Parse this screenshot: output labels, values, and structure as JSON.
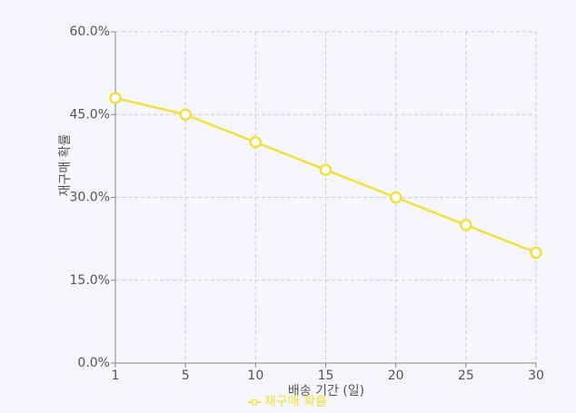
{
  "chart_data": {
    "type": "line",
    "x_label": "배송 기간 (일)",
    "y_label": "재구매 확률",
    "categories": [
      "1",
      "5",
      "10",
      "15",
      "20",
      "25",
      "30"
    ],
    "series": [
      {
        "name": "재구매 확률",
        "color": "#f0e040",
        "values": [
          48,
          45,
          40,
          35,
          30,
          25,
          20
        ]
      }
    ],
    "ylim": [
      0,
      60
    ],
    "yticks": [
      {
        "value": 0,
        "label": "0.0%"
      },
      {
        "value": 15,
        "label": "15.0%"
      },
      {
        "value": 30,
        "label": "30.0%"
      },
      {
        "value": 45,
        "label": "45.0%"
      },
      {
        "value": 60,
        "label": "60.0%"
      }
    ],
    "grid": true,
    "legend": "bottom"
  }
}
